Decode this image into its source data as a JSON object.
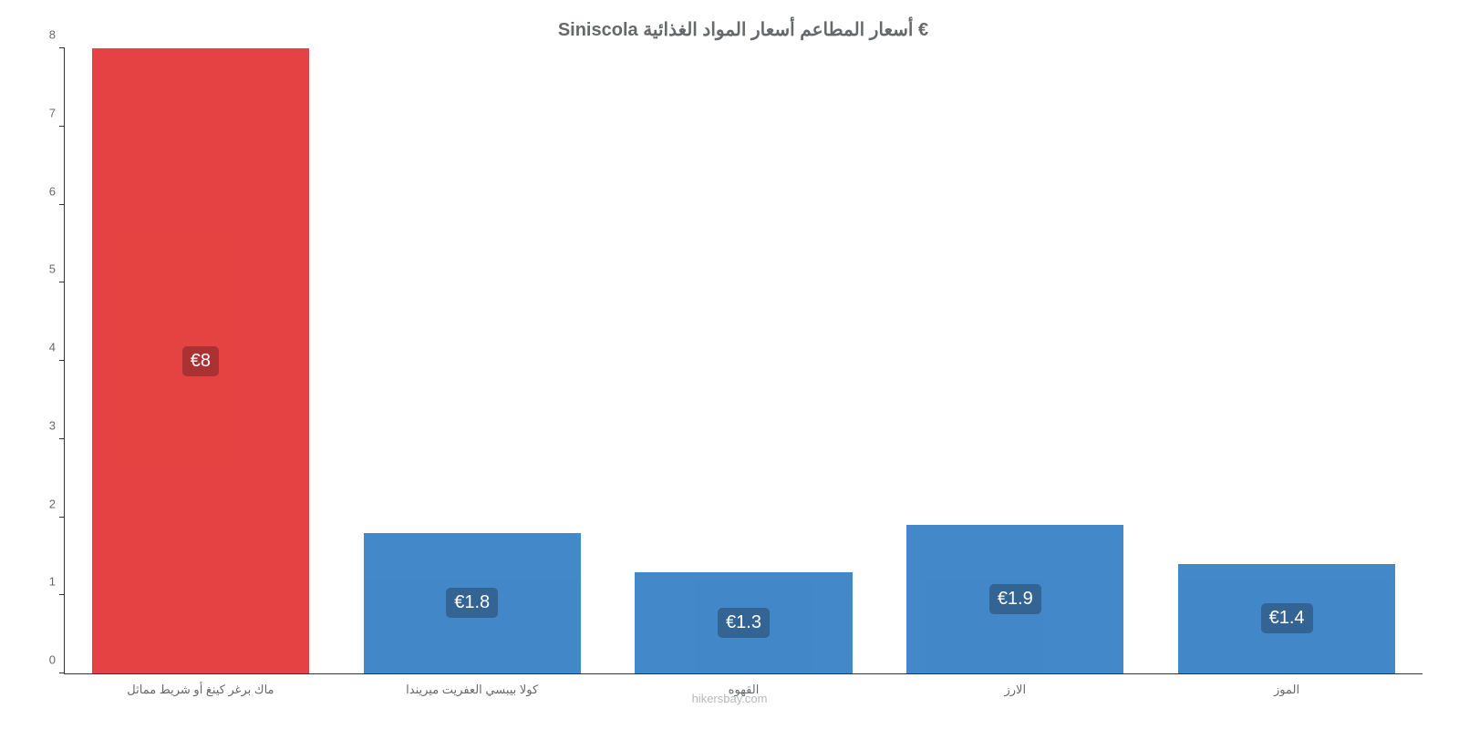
{
  "chart": {
    "type": "bar",
    "title": "Siniscola أسعار المطاعم أسعار المواد الغذائية €",
    "title_fontsize": 20,
    "title_color": "#66696c",
    "categories": [
      "ماك برغر كينغ أو شريط مماثل",
      "كولا بيبسي العفريت ميريندا",
      "القهوه",
      "الارز",
      "الموز"
    ],
    "values": [
      8,
      1.8,
      1.3,
      1.9,
      1.4
    ],
    "value_labels": [
      "€8",
      "€1.8",
      "€1.3",
      "€1.9",
      "€1.4"
    ],
    "bar_colors": [
      "#e33333",
      "#337ec4",
      "#337ec4",
      "#337ec4",
      "#337ec4"
    ],
    "label_bg_colors": [
      "#a32121",
      "#22578a",
      "#22578a",
      "#22578a",
      "#22578a"
    ],
    "ylim": [
      0,
      8
    ],
    "yticks": [
      0,
      1,
      2,
      3,
      4,
      5,
      6,
      7,
      8
    ],
    "axis_label_color": "#66696c",
    "axis_label_fontsize": 13,
    "bar_width_pct": 80,
    "value_label_fontsize": 20,
    "watermark": "hikersbay.com",
    "watermark_color": "#b7b9bb",
    "background_color": "#ffffff",
    "axis_line_color": "#333333"
  }
}
